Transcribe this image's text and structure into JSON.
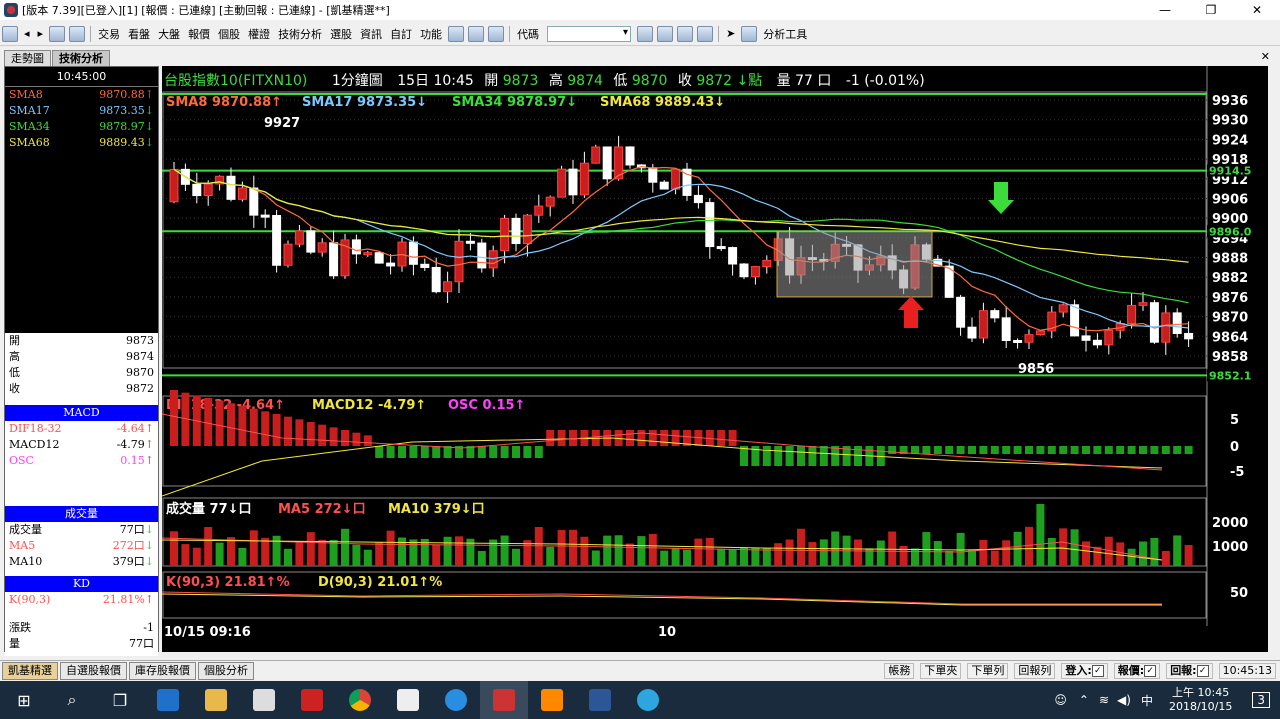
{
  "window": {
    "title": "[版本 7.39][已登入][1] [報價 : 已連線] [主動回報 : 已連線] - [凱基精選**]",
    "min": "—",
    "max": "❐",
    "close": "✕"
  },
  "toolbar": {
    "items": [
      "交易",
      "看盤",
      "大盤",
      "報價",
      "個股",
      "權證",
      "技術分析",
      "選股",
      "資訊",
      "自訂",
      "功能",
      "代碼",
      "分析工具"
    ]
  },
  "tabs": [
    "走勢圖",
    "技術分析"
  ],
  "left": {
    "time": "10:45:00",
    "sma": [
      {
        "label": "SMA8",
        "value": "9870.88",
        "arrow": "↑",
        "color": "#ff6a3c"
      },
      {
        "label": "SMA17",
        "value": "9873.35",
        "arrow": "↓",
        "color": "#7ec8ff"
      },
      {
        "label": "SMA34",
        "value": "9878.97",
        "arrow": "↓",
        "color": "#3cdc3c"
      },
      {
        "label": "SMA68",
        "value": "9889.43",
        "arrow": "↓",
        "color": "#f0e640"
      }
    ],
    "ohlc": [
      {
        "label": "開",
        "value": "9873"
      },
      {
        "label": "高",
        "value": "9874"
      },
      {
        "label": "低",
        "value": "9870"
      },
      {
        "label": "收",
        "value": "9872"
      }
    ],
    "macd_title": "MACD",
    "macd": [
      {
        "label": "DIF18-32",
        "value": "-4.64",
        "arrow": "↑",
        "color": "#ff5050"
      },
      {
        "label": "MACD12",
        "value": "-4.79",
        "arrow": "↑",
        "color": "#000"
      },
      {
        "label": "OSC",
        "value": "0.15",
        "arrow": "↑",
        "color": "#ff40ff"
      }
    ],
    "vol_title": "成交量",
    "vol": [
      {
        "label": "成交量",
        "value": "77口",
        "arrow": "↓",
        "color": "#000"
      },
      {
        "label": "MA5",
        "value": "272口",
        "arrow": "↓",
        "color": "#ff5050"
      },
      {
        "label": "MA10",
        "value": "379口",
        "arrow": "↓",
        "color": "#000"
      }
    ],
    "kd_title": "KD",
    "kd": [
      {
        "label": "K(90,3)",
        "value": "21.81%",
        "arrow": "↑",
        "color": "#ff5050"
      }
    ],
    "chg": [
      {
        "label": "漲跌",
        "value": "-1"
      },
      {
        "label": "量",
        "value": "77口"
      }
    ]
  },
  "header": {
    "symbol": "台股指數10(FITXN10)",
    "interval": "1分鐘圖",
    "date_time": "15日 10:45",
    "open_lbl": "開",
    "open": "9873",
    "high_lbl": "高",
    "high": "9874",
    "low_lbl": "低",
    "low": "9870",
    "close_lbl": "收",
    "close": "9872",
    "unit": "↓點",
    "vol_lbl": "量",
    "vol": "77 口",
    "chg": "-1 (-0.01%)"
  },
  "legend": {
    "sma": [
      "SMA8 9870.88↑",
      "SMA17 9873.35↓",
      "SMA34 9878.97↓",
      "SMA68 9889.43↓"
    ],
    "macd": [
      "DIF18-32 -4.64↑",
      "MACD12 -4.79↑",
      "OSC 0.15↑"
    ],
    "vol": [
      "成交量 77↓口",
      "MA5 272↓口",
      "MA10 379↓口"
    ],
    "kd": [
      "K(90,3) 21.81↑%",
      "D(90,3) 21.01↑%"
    ]
  },
  "price_axis": [
    "9936",
    "9930",
    "9924",
    "9918",
    "9912",
    "9906",
    "9900",
    "9894",
    "9888",
    "9882",
    "9876",
    "9870",
    "9864",
    "9858"
  ],
  "price_tags": [
    "9914.5",
    "9896.0",
    "9852.1"
  ],
  "annotations": {
    "high": "9927",
    "low": "9856"
  },
  "macd_axis": [
    "5",
    "0",
    "-5"
  ],
  "vol_axis": [
    "2000",
    "1000"
  ],
  "kd_axis": [
    "50"
  ],
  "time_axis": [
    "10/15 09:16",
    "10"
  ],
  "status": {
    "tabs": [
      "凱基精選",
      "自選股報價",
      "庫存股報價",
      "個股分析"
    ],
    "right": [
      "帳務",
      "下單夾",
      "下單列",
      "回報列",
      "登入:",
      "報價:",
      "回報:"
    ],
    "time": "10:45:13"
  },
  "taskbar": {
    "time": "上午 10:45",
    "date": "2018/10/15",
    "ime": "中",
    "notif": "3"
  }
}
